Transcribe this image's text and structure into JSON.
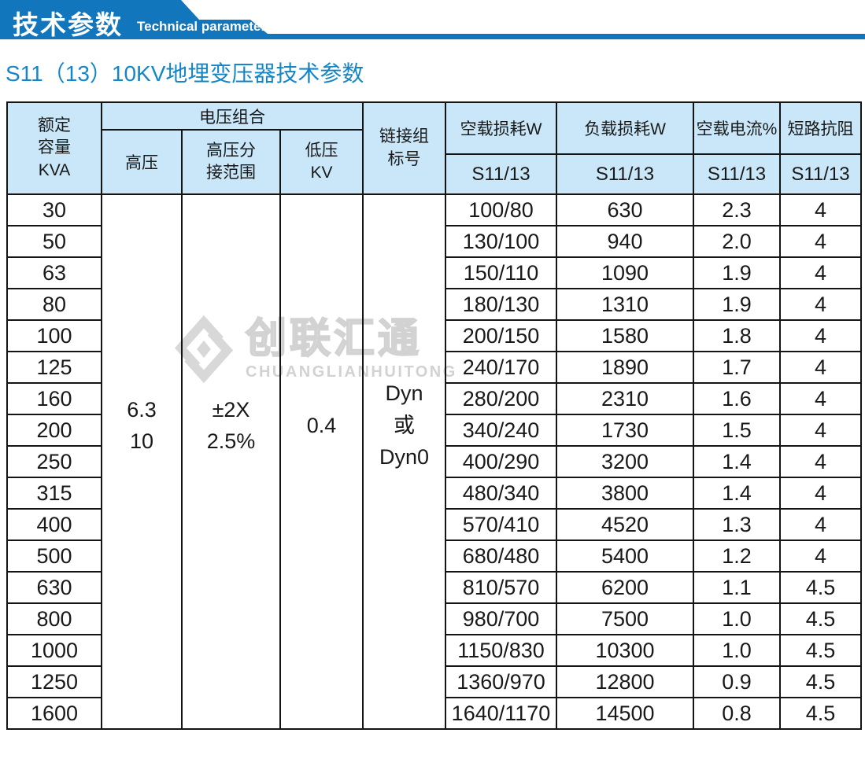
{
  "banner": {
    "title": "技术参数",
    "subtitle": "Technical parameter"
  },
  "page_title": "S11（13）10KV地埋变压器技术参数",
  "watermark": {
    "cn": "创联汇通",
    "en": "CHUANGLIANHUITONG"
  },
  "colors": {
    "banner_blue": "#1176bc",
    "title_blue": "#1486c8",
    "header_bg": "#c9e7f8",
    "border": "#141414",
    "watermark_gray": "#d2d2d2"
  },
  "table": {
    "headers": {
      "rated_capacity": "额定\n容量\nKVA",
      "voltage_combo": "电压组合",
      "hv": "高压",
      "hv_tap_range": "高压分\n接范围",
      "lv": "低压\nKV",
      "vector_group": "链接组\n标号",
      "no_load_loss": "空载损耗W",
      "load_loss": "负载损耗W",
      "no_load_current": "空载电流%",
      "impedance": "短路抗阻",
      "model": "S11/13"
    },
    "merged": {
      "hv": "6.3\n10",
      "hv_tap_range": "±2X\n2.5%",
      "lv": "0.4",
      "vector_group": "Dyn\n或\nDyn0"
    },
    "rows": [
      {
        "kva": "30",
        "no_load_loss": "100/80",
        "load_loss": "630",
        "no_load_current": "2.3",
        "impedance": "4"
      },
      {
        "kva": "50",
        "no_load_loss": "130/100",
        "load_loss": "940",
        "no_load_current": "2.0",
        "impedance": "4"
      },
      {
        "kva": "63",
        "no_load_loss": "150/110",
        "load_loss": "1090",
        "no_load_current": "1.9",
        "impedance": "4"
      },
      {
        "kva": "80",
        "no_load_loss": "180/130",
        "load_loss": "1310",
        "no_load_current": "1.9",
        "impedance": "4"
      },
      {
        "kva": "100",
        "no_load_loss": "200/150",
        "load_loss": "1580",
        "no_load_current": "1.8",
        "impedance": "4"
      },
      {
        "kva": "125",
        "no_load_loss": "240/170",
        "load_loss": "1890",
        "no_load_current": "1.7",
        "impedance": "4"
      },
      {
        "kva": "160",
        "no_load_loss": "280/200",
        "load_loss": "2310",
        "no_load_current": "1.6",
        "impedance": "4"
      },
      {
        "kva": "200",
        "no_load_loss": "340/240",
        "load_loss": "1730",
        "no_load_current": "1.5",
        "impedance": "4"
      },
      {
        "kva": "250",
        "no_load_loss": "400/290",
        "load_loss": "3200",
        "no_load_current": "1.4",
        "impedance": "4"
      },
      {
        "kva": "315",
        "no_load_loss": "480/340",
        "load_loss": "3800",
        "no_load_current": "1.4",
        "impedance": "4"
      },
      {
        "kva": "400",
        "no_load_loss": "570/410",
        "load_loss": "4520",
        "no_load_current": "1.3",
        "impedance": "4"
      },
      {
        "kva": "500",
        "no_load_loss": "680/480",
        "load_loss": "5400",
        "no_load_current": "1.2",
        "impedance": "4"
      },
      {
        "kva": "630",
        "no_load_loss": "810/570",
        "load_loss": "6200",
        "no_load_current": "1.1",
        "impedance": "4.5"
      },
      {
        "kva": "800",
        "no_load_loss": "980/700",
        "load_loss": "7500",
        "no_load_current": "1.0",
        "impedance": "4.5"
      },
      {
        "kva": "1000",
        "no_load_loss": "1150/830",
        "load_loss": "10300",
        "no_load_current": "1.0",
        "impedance": "4.5"
      },
      {
        "kva": "1250",
        "no_load_loss": "1360/970",
        "load_loss": "12800",
        "no_load_current": "0.9",
        "impedance": "4.5"
      },
      {
        "kva": "1600",
        "no_load_loss": "1640/1170",
        "load_loss": "14500",
        "no_load_current": "0.8",
        "impedance": "4.5"
      }
    ]
  }
}
